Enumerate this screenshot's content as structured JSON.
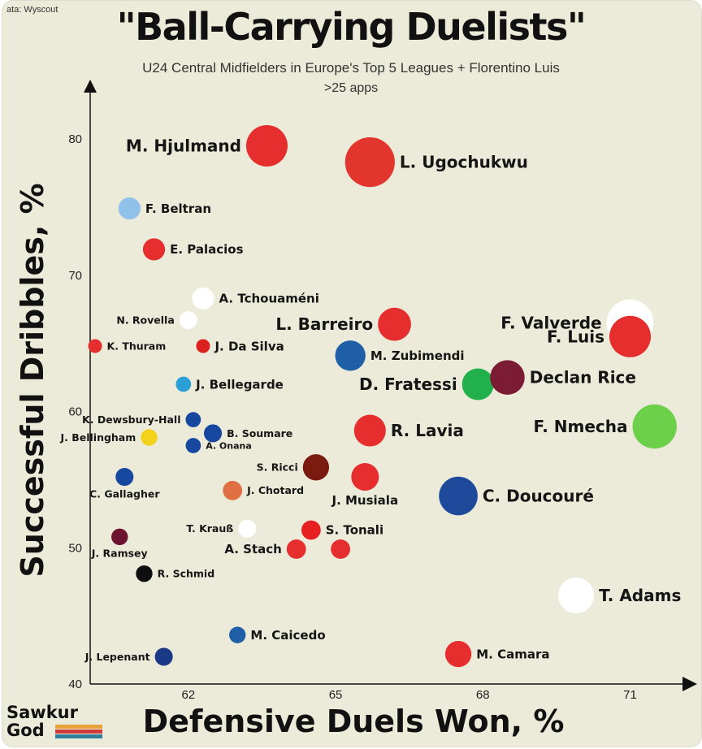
{
  "source": "ata: Wyscout",
  "title": "\"Ball-Carrying Duelists\"",
  "subtitle": "U24 Central Midfielders in Europe's Top 5 Leagues + Florentino Luis",
  "subtitle2": ">25 apps",
  "logo": {
    "line1": "Sawkur",
    "line2": "God",
    "stripe_colors": [
      "#e8a33b",
      "#d23a3a",
      "#2f7f9a"
    ]
  },
  "chart_data": {
    "type": "scatter",
    "title": "\"Ball-Carrying Duelists\"",
    "xlabel": "Defensive Duels Won, %",
    "ylabel": "Successful Dribbles, %",
    "xlim": [
      60,
      72.2
    ],
    "ylim": [
      40,
      84
    ],
    "xticks": [
      62,
      65,
      68,
      71
    ],
    "yticks": [
      40,
      50,
      60,
      70,
      80
    ],
    "grid": false,
    "points": [
      {
        "label": "M. Hjulmand",
        "x": 63.6,
        "y": 79.5,
        "size": 3,
        "color": "#e62e2e",
        "label_side": "left",
        "label_size": "large"
      },
      {
        "label": "L. Ugochukwu",
        "x": 65.7,
        "y": 78.3,
        "size": 3.6,
        "color": "#e2352d",
        "label_side": "right",
        "label_size": "large"
      },
      {
        "label": "F. Beltran",
        "x": 60.8,
        "y": 74.9,
        "size": 1.6,
        "color": "#8fc1ea",
        "label_side": "right",
        "label_size": "medium"
      },
      {
        "label": "E. Palacios",
        "x": 61.3,
        "y": 71.9,
        "size": 1.6,
        "color": "#e62e2e",
        "label_side": "right",
        "label_size": "medium"
      },
      {
        "label": "A. Tchouaméni",
        "x": 62.3,
        "y": 68.3,
        "size": 1.6,
        "color": "#ffffff",
        "label_side": "right",
        "label_size": "medium"
      },
      {
        "label": "N. Rovella",
        "x": 62.0,
        "y": 66.7,
        "size": 1.3,
        "color": "#ffffff",
        "label_side": "left",
        "label_size": "small"
      },
      {
        "label": "L. Barreiro",
        "x": 66.2,
        "y": 66.4,
        "size": 2.4,
        "color": "#e62e2e",
        "label_side": "left",
        "label_size": "large"
      },
      {
        "label": "F. Valverde",
        "x": 71.0,
        "y": 66.5,
        "size": 3.4,
        "color": "#ffffff",
        "label_side": "left",
        "label_size": "large"
      },
      {
        "label": "F. Luis",
        "x": 71.0,
        "y": 65.5,
        "size": 3.0,
        "color": "#e62e2e",
        "label_side": "left",
        "label_size": "large"
      },
      {
        "label": "K. Thuram",
        "x": 60.1,
        "y": 64.8,
        "size": 1.0,
        "color": "#e62e2e",
        "label_side": "right",
        "label_size": "small"
      },
      {
        "label": "J. Da Silva",
        "x": 62.3,
        "y": 64.8,
        "size": 1.0,
        "color": "#dd2020",
        "label_side": "right",
        "label_size": "medium"
      },
      {
        "label": "M. Zubimendi",
        "x": 65.3,
        "y": 64.1,
        "size": 2.2,
        "color": "#1f5fa8",
        "label_side": "right",
        "label_size": "medium"
      },
      {
        "label": "D. Fratessi",
        "x": 67.9,
        "y": 62.0,
        "size": 2.3,
        "color": "#21b04b",
        "label_side": "left",
        "label_size": "large"
      },
      {
        "label": "Declan Rice",
        "x": 68.5,
        "y": 62.5,
        "size": 2.5,
        "color": "#7b1c34",
        "label_side": "right",
        "label_size": "large"
      },
      {
        "label": "J. Bellegarde",
        "x": 61.9,
        "y": 62.0,
        "size": 1.1,
        "color": "#2a9fd8",
        "label_side": "right",
        "label_size": "medium"
      },
      {
        "label": "F. Nmecha",
        "x": 71.5,
        "y": 58.9,
        "size": 3.2,
        "color": "#6cd04a",
        "label_side": "left",
        "label_size": "large"
      },
      {
        "label": "R. Lavia",
        "x": 65.7,
        "y": 58.6,
        "size": 2.3,
        "color": "#e62e2e",
        "label_side": "right",
        "label_size": "large"
      },
      {
        "label": "K. Dewsbury-Hall",
        "x": 62.1,
        "y": 59.4,
        "size": 1.1,
        "color": "#1648a0",
        "label_side": "left",
        "label_size": "small"
      },
      {
        "label": "B. Soumare",
        "x": 62.5,
        "y": 58.4,
        "size": 1.3,
        "color": "#1648a0",
        "label_side": "right",
        "label_size": "small"
      },
      {
        "label": "J. Bellingham",
        "x": 61.2,
        "y": 58.1,
        "size": 1.2,
        "color": "#f2d21a",
        "label_side": "left",
        "label_size": "small"
      },
      {
        "label": "A. Onana",
        "x": 62.1,
        "y": 57.5,
        "size": 1.1,
        "color": "#1648a0",
        "label_side": "right",
        "label_size": "tiny"
      },
      {
        "label": "S. Ricci",
        "x": 64.6,
        "y": 55.9,
        "size": 1.9,
        "color": "#7b1a0e",
        "label_side": "left",
        "label_size": "small"
      },
      {
        "label": "C. Gallagher",
        "x": 60.7,
        "y": 55.2,
        "size": 1.3,
        "color": "#1648a0",
        "label_side": "below",
        "label_size": "small"
      },
      {
        "label": "J. Chotard",
        "x": 62.9,
        "y": 54.2,
        "size": 1.4,
        "color": "#e07043",
        "label_side": "right",
        "label_size": "small"
      },
      {
        "label": "J. Musiala",
        "x": 65.6,
        "y": 55.2,
        "size": 2.0,
        "color": "#e62e2e",
        "label_side": "below",
        "label_size": "medium"
      },
      {
        "label": "C. Doucouré",
        "x": 67.5,
        "y": 53.8,
        "size": 2.8,
        "color": "#1f4a9c",
        "label_side": "right",
        "label_size": "large"
      },
      {
        "label": "T. Krauß",
        "x": 63.2,
        "y": 51.4,
        "size": 1.3,
        "color": "#ffffff",
        "label_side": "left",
        "label_size": "small"
      },
      {
        "label": "S. Tonali",
        "x": 64.5,
        "y": 51.3,
        "size": 1.4,
        "color": "#e62020",
        "label_side": "right",
        "label_size": "medium"
      },
      {
        "label": "J. Ramsey",
        "x": 60.6,
        "y": 50.8,
        "size": 1.2,
        "color": "#6d1430",
        "label_side": "below",
        "label_size": "small"
      },
      {
        "label": "A. Stach",
        "x": 64.2,
        "y": 49.9,
        "size": 1.4,
        "color": "#e62e2e",
        "label_side": "left",
        "label_size": "medium"
      },
      {
        "label": "",
        "x": 65.1,
        "y": 49.9,
        "size": 1.4,
        "color": "#e62e2e",
        "label_side": "none",
        "label_size": "small"
      },
      {
        "label": "R. Schmid",
        "x": 61.1,
        "y": 48.1,
        "size": 1.2,
        "color": "#0e0e0e",
        "label_side": "right",
        "label_size": "small"
      },
      {
        "label": "T. Adams",
        "x": 69.9,
        "y": 46.5,
        "size": 2.6,
        "color": "#ffffff",
        "label_side": "right",
        "label_size": "large"
      },
      {
        "label": "M. Caicedo",
        "x": 63.0,
        "y": 43.6,
        "size": 1.2,
        "color": "#1f5fa8",
        "label_side": "right",
        "label_size": "medium"
      },
      {
        "label": "J. Lepenant",
        "x": 61.5,
        "y": 42.0,
        "size": 1.3,
        "color": "#1a3a88",
        "label_side": "left",
        "label_size": "small"
      },
      {
        "label": "M. Camara",
        "x": 67.5,
        "y": 42.2,
        "size": 1.9,
        "color": "#e62e2e",
        "label_side": "right",
        "label_size": "medium"
      }
    ]
  }
}
